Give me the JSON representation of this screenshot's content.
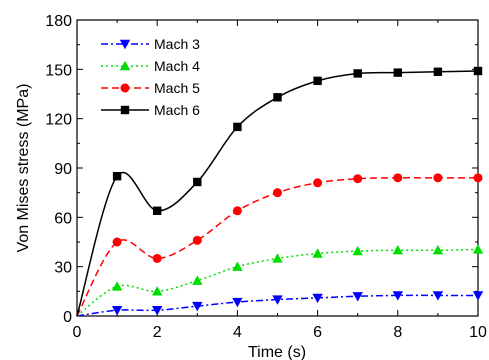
{
  "chart_data": {
    "type": "line",
    "title": "",
    "xlabel": "Time (s)",
    "ylabel": "Von Mises stress (MPa)",
    "xlim": [
      0,
      10
    ],
    "ylim": [
      0,
      180
    ],
    "xticks": [
      0,
      2,
      4,
      6,
      8,
      10
    ],
    "yticks": [
      0,
      30,
      60,
      90,
      120,
      150,
      180
    ],
    "grid": false,
    "legend_position": "top-left",
    "x": [
      0,
      1,
      2,
      3,
      4,
      5,
      6,
      7,
      8,
      9,
      10
    ],
    "series": [
      {
        "name": "Mach 3",
        "color": "#0000ff",
        "marker": "triangle-down",
        "dash": "dash-dot",
        "values": [
          0,
          3.5,
          3.5,
          6,
          8.5,
          10,
          11,
          12,
          12.5,
          12.5,
          12.5
        ]
      },
      {
        "name": "Mach 4",
        "color": "#00dd00",
        "marker": "triangle-up",
        "dash": "dot",
        "values": [
          0,
          18,
          15,
          21.5,
          30,
          35,
          38,
          39.5,
          40,
          40,
          40.5
        ]
      },
      {
        "name": "Mach 5",
        "color": "#ff0000",
        "marker": "circle",
        "dash": "dash",
        "values": [
          0,
          45,
          35,
          46,
          64,
          75,
          81,
          83.5,
          84,
          84,
          84
        ]
      },
      {
        "name": "Mach 6",
        "color": "#000000",
        "marker": "square",
        "dash": "solid",
        "values": [
          0,
          85,
          64,
          81.5,
          115,
          133,
          143,
          147.5,
          148,
          148.5,
          149
        ]
      }
    ]
  }
}
